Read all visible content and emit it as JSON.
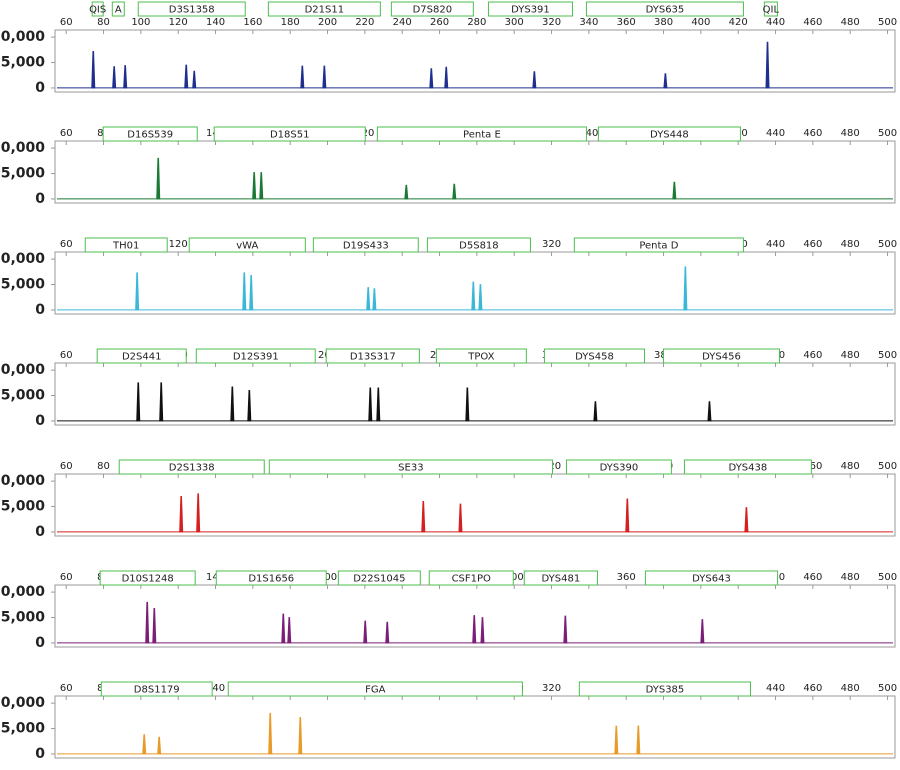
{
  "chart_data": [
    {
      "type": "peaks",
      "color": "#1f2f8f",
      "xlim": [
        54,
        504
      ],
      "xticks": [
        60,
        80,
        100,
        120,
        140,
        160,
        180,
        200,
        220,
        240,
        260,
        280,
        300,
        320,
        340,
        360,
        380,
        400,
        420,
        440,
        460,
        480,
        500
      ],
      "ylim": [
        -800,
        11400
      ],
      "yticks": [
        {
          "value": 0,
          "label": "0"
        },
        {
          "value": 5000,
          "label": "5,000"
        },
        {
          "value": 10000,
          "label": "10,000"
        }
      ],
      "loci": [
        {
          "name": "QIS",
          "range": [
            73.9,
            79.8
          ]
        },
        {
          "name": "A",
          "range": [
            84.7,
            91.1
          ]
        },
        {
          "name": "D3S1358",
          "range": [
            98.6,
            155.9
          ]
        },
        {
          "name": "D21S11",
          "range": [
            168.3,
            228.3
          ]
        },
        {
          "name": "D7S820",
          "range": [
            234.2,
            278.1
          ]
        },
        {
          "name": "DYS391",
          "range": [
            286.2,
            331.2
          ]
        },
        {
          "name": "DYS635",
          "range": [
            338.7,
            422.8
          ]
        },
        {
          "name": "QIL",
          "range": [
            434,
            441
          ]
        }
      ],
      "x": [
        74.5,
        85.7,
        91.6,
        124.3,
        128.6,
        186.5,
        198.3,
        255.6,
        263.6,
        310.8,
        381,
        435.7
      ],
      "values": [
        7200,
        4200,
        4400,
        4500,
        3300,
        4300,
        4300,
        3800,
        4100,
        3200,
        2800,
        9000
      ]
    },
    {
      "type": "peaks",
      "color": "#1a7a35",
      "xlim": [
        54,
        504
      ],
      "xticks": [
        60,
        80,
        100,
        120,
        140,
        160,
        180,
        200,
        220,
        240,
        260,
        280,
        300,
        320,
        340,
        360,
        380,
        400,
        420,
        440,
        460,
        480,
        500
      ],
      "ylim": [
        -800,
        11400
      ],
      "yticks": [
        {
          "value": 0,
          "label": "0"
        },
        {
          "value": 5000,
          "label": "5,000"
        },
        {
          "value": 10000,
          "label": "10,000"
        }
      ],
      "loci": [
        {
          "name": "D16S539",
          "range": [
            79.8,
            130.2
          ]
        },
        {
          "name": "D18S51",
          "range": [
            139.3,
            220.2
          ]
        },
        {
          "name": "Penta E",
          "range": [
            226.7,
            338.7
          ]
        },
        {
          "name": "DYS448",
          "range": [
            345.1,
            421.2
          ]
        }
      ],
      "x": [
        109.3,
        160.7,
        164.5,
        242.2,
        267.9,
        385.8
      ],
      "values": [
        8000,
        5200,
        5200,
        2700,
        2900,
        3300
      ]
    },
    {
      "type": "peaks",
      "color": "#3bb8d8",
      "xlim": [
        54,
        504
      ],
      "xticks": [
        60,
        80,
        100,
        120,
        140,
        160,
        180,
        200,
        220,
        240,
        260,
        280,
        300,
        320,
        340,
        360,
        380,
        400,
        420,
        440,
        460,
        480,
        500
      ],
      "ylim": [
        -800,
        11400
      ],
      "yticks": [
        {
          "value": 0,
          "label": "0"
        },
        {
          "value": 5000,
          "label": "5,000"
        },
        {
          "value": 10000,
          "label": "10,000"
        }
      ],
      "loci": [
        {
          "name": "TH01",
          "range": [
            70.2,
            114.1
          ]
        },
        {
          "name": "vWA",
          "range": [
            125.9,
            188.1
          ]
        },
        {
          "name": "D19S433",
          "range": [
            192.4,
            248.6
          ]
        },
        {
          "name": "D5S818",
          "range": [
            253.5,
            308.7
          ]
        },
        {
          "name": "Penta D",
          "range": [
            332.2,
            422.8
          ]
        }
      ],
      "x": [
        98,
        155.4,
        159.1,
        221.8,
        225.1,
        278.1,
        281.9,
        391.7
      ],
      "values": [
        7300,
        7300,
        6800,
        4400,
        4200,
        5500,
        5000,
        8500
      ]
    },
    {
      "type": "peaks",
      "color": "#111111",
      "xlim": [
        54,
        504
      ],
      "xticks": [
        60,
        80,
        100,
        120,
        140,
        160,
        180,
        200,
        220,
        240,
        260,
        280,
        300,
        320,
        340,
        360,
        380,
        400,
        420,
        440,
        460,
        480,
        500
      ],
      "ylim": [
        -800,
        11400
      ],
      "yticks": [
        {
          "value": 0,
          "label": "0"
        },
        {
          "value": 5000,
          "label": "5,000"
        },
        {
          "value": 10000,
          "label": "10,000"
        }
      ],
      "loci": [
        {
          "name": "D2S441",
          "range": [
            76.6,
            124.3
          ]
        },
        {
          "name": "D12S391",
          "range": [
            129.7,
            193.4
          ]
        },
        {
          "name": "D13S317",
          "range": [
            199.3,
            249.2
          ]
        },
        {
          "name": "TPOX",
          "range": [
            258.3,
            306.5
          ]
        },
        {
          "name": "DYS458",
          "range": [
            316.2,
            369.8
          ]
        },
        {
          "name": "DYS456",
          "range": [
            380,
            442.1
          ]
        }
      ],
      "x": [
        98.6,
        110.9,
        149,
        158.1,
        222.9,
        227.2,
        274.9,
        343.5,
        404.6
      ],
      "values": [
        7500,
        7500,
        6700,
        6000,
        6500,
        6500,
        6500,
        3800,
        3800
      ]
    },
    {
      "type": "peaks",
      "color": "#d42020",
      "xlim": [
        54,
        504
      ],
      "xticks": [
        60,
        80,
        100,
        120,
        140,
        160,
        180,
        200,
        220,
        240,
        260,
        280,
        300,
        320,
        340,
        360,
        380,
        400,
        420,
        440,
        460,
        480,
        500
      ],
      "ylim": [
        -800,
        11400
      ],
      "yticks": [
        {
          "value": 0,
          "label": "0"
        },
        {
          "value": 5000,
          "label": "5,000"
        },
        {
          "value": 10000,
          "label": "10,000"
        }
      ],
      "loci": [
        {
          "name": "D2S1338",
          "range": [
            88.4,
            166.1
          ]
        },
        {
          "name": "SE33",
          "range": [
            168.8,
            320.5
          ]
        },
        {
          "name": "DYS390",
          "range": [
            328,
            384.2
          ]
        },
        {
          "name": "DYS438",
          "range": [
            391.2,
            459.2
          ]
        }
      ],
      "x": [
        121.6,
        130.7,
        251.3,
        271.2,
        360.6,
        424.4
      ],
      "values": [
        7000,
        7500,
        6000,
        5500,
        6500,
        4800
      ]
    },
    {
      "type": "peaks",
      "color": "#7a1f78",
      "xlim": [
        54,
        504
      ],
      "xticks": [
        60,
        80,
        100,
        120,
        140,
        160,
        180,
        200,
        220,
        240,
        260,
        280,
        300,
        320,
        340,
        360,
        380,
        400,
        420,
        440,
        460,
        480,
        500
      ],
      "ylim": [
        -800,
        11400
      ],
      "yticks": [
        {
          "value": 0,
          "label": "0"
        },
        {
          "value": 5000,
          "label": "5,000"
        },
        {
          "value": 10000,
          "label": "10,000"
        }
      ],
      "loci": [
        {
          "name": "D10S1248",
          "range": [
            78.2,
            129.1
          ]
        },
        {
          "name": "D1S1656",
          "range": [
            140.4,
            199.3
          ]
        },
        {
          "name": "D22S1045",
          "range": [
            205.8,
            249.7
          ]
        },
        {
          "name": "CSF1PO",
          "range": [
            254.5,
            299.5
          ]
        },
        {
          "name": "DYS481",
          "range": [
            305.4,
            344.6
          ]
        },
        {
          "name": "DYS643",
          "range": [
            370.3,
            441.1
          ]
        }
      ],
      "x": [
        103.4,
        107.2,
        176.3,
        179.5,
        220.2,
        232,
        278.6,
        283,
        327.4,
        400.8
      ],
      "values": [
        8000,
        6800,
        5700,
        5000,
        4300,
        4100,
        5400,
        5000,
        5300,
        4600
      ]
    },
    {
      "type": "peaks",
      "color": "#e89a2a",
      "xlim": [
        54,
        504
      ],
      "xticks": [
        60,
        80,
        100,
        120,
        140,
        160,
        180,
        200,
        220,
        240,
        260,
        280,
        300,
        320,
        340,
        360,
        380,
        400,
        420,
        440,
        460,
        480,
        500
      ],
      "ylim": [
        -800,
        11400
      ],
      "yticks": [
        {
          "value": 0,
          "label": "0"
        },
        {
          "value": 5000,
          "label": "5,000"
        },
        {
          "value": 10000,
          "label": "10,000"
        }
      ],
      "loci": [
        {
          "name": "D8S1179",
          "range": [
            78.8,
            138.2
          ]
        },
        {
          "name": "FGA",
          "range": [
            146.8,
            304.4
          ]
        },
        {
          "name": "DYS385",
          "range": [
            334.9,
            426.6
          ]
        }
      ],
      "x": [
        101.8,
        109.8,
        169.3,
        185.4,
        354.7,
        366.5
      ],
      "values": [
        3800,
        3300,
        8000,
        7200,
        5500,
        5500
      ]
    }
  ]
}
